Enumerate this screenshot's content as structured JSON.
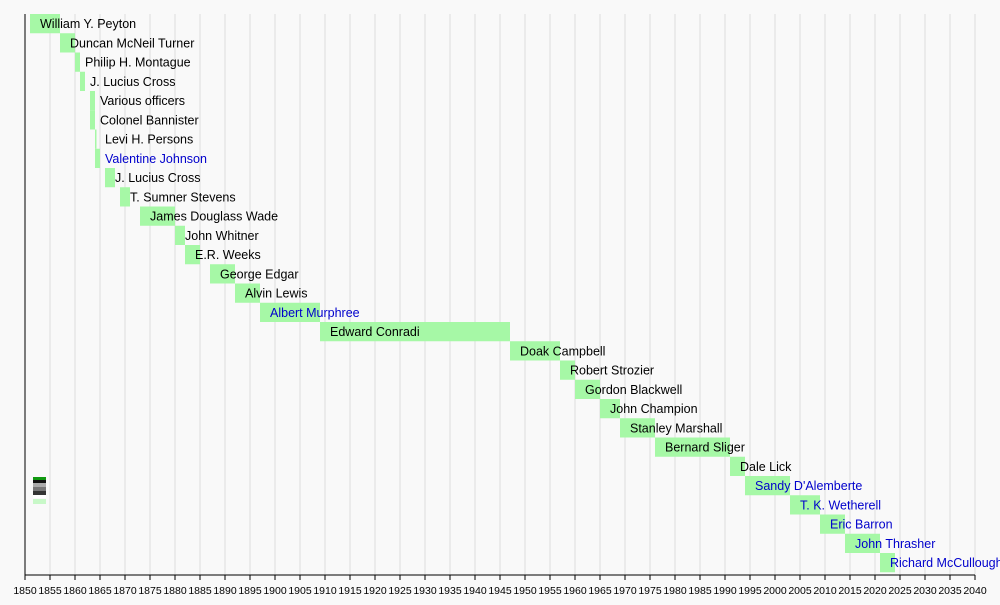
{
  "chart_data": {
    "type": "bar",
    "orientation": "horizontal-timeline",
    "title": "",
    "xlabel": "",
    "ylabel": "",
    "xlim": [
      1850,
      2040
    ],
    "xticks": [
      1850,
      1855,
      1860,
      1865,
      1870,
      1875,
      1880,
      1885,
      1890,
      1895,
      1900,
      1905,
      1910,
      1915,
      1920,
      1925,
      1930,
      1935,
      1940,
      1945,
      1950,
      1955,
      1960,
      1965,
      1970,
      1975,
      1980,
      1985,
      1990,
      1995,
      2000,
      2005,
      2010,
      2015,
      2020,
      2025,
      2030,
      2035,
      2040
    ],
    "grid": true,
    "colors": {
      "bar": "#a6f8a6",
      "link_text": "#0000cc",
      "text": "#000000",
      "grid": "#dddddd",
      "axis": "#000000"
    },
    "legend": "bottom-left",
    "entries": [
      {
        "name": "William Y. Peyton",
        "start": 1851,
        "end": 1857,
        "link": false
      },
      {
        "name": "Duncan McNeil Turner",
        "start": 1857,
        "end": 1860,
        "link": false
      },
      {
        "name": "Philip H. Montague",
        "start": 1860,
        "end": 1861,
        "link": false
      },
      {
        "name": "J. Lucius Cross",
        "start": 1861,
        "end": 1862,
        "link": false
      },
      {
        "name": "Various officers",
        "start": 1863,
        "end": 1864,
        "link": false
      },
      {
        "name": "Colonel Bannister",
        "start": 1863,
        "end": 1864,
        "link": false
      },
      {
        "name": "Levi H. Persons",
        "start": 1864,
        "end": 1864.3,
        "link": false
      },
      {
        "name": "Valentine Johnson",
        "start": 1864,
        "end": 1865,
        "link": true
      },
      {
        "name": "J. Lucius Cross",
        "start": 1866,
        "end": 1868,
        "link": false
      },
      {
        "name": "T. Sumner Stevens",
        "start": 1869,
        "end": 1871,
        "link": false
      },
      {
        "name": "James Douglass Wade",
        "start": 1873,
        "end": 1880,
        "link": false
      },
      {
        "name": "John Whitner",
        "start": 1880,
        "end": 1882,
        "link": false
      },
      {
        "name": "E.R. Weeks",
        "start": 1882,
        "end": 1885,
        "link": false
      },
      {
        "name": "George Edgar",
        "start": 1887,
        "end": 1892,
        "link": false
      },
      {
        "name": "Alvin Lewis",
        "start": 1892,
        "end": 1897,
        "link": false
      },
      {
        "name": "Albert Murphree",
        "start": 1897,
        "end": 1909,
        "link": true
      },
      {
        "name": "Edward Conradi",
        "start": 1909,
        "end": 1947,
        "link": false
      },
      {
        "name": "Doak Campbell",
        "start": 1947,
        "end": 1957,
        "link": false
      },
      {
        "name": "Robert Strozier",
        "start": 1957,
        "end": 1960,
        "link": false
      },
      {
        "name": "Gordon Blackwell",
        "start": 1960,
        "end": 1965,
        "link": false
      },
      {
        "name": "John Champion",
        "start": 1965,
        "end": 1969,
        "link": false
      },
      {
        "name": "Stanley Marshall",
        "start": 1969,
        "end": 1976,
        "link": false
      },
      {
        "name": "Bernard Sliger",
        "start": 1976,
        "end": 1991,
        "link": false
      },
      {
        "name": "Dale Lick",
        "start": 1991,
        "end": 1994,
        "link": false
      },
      {
        "name": "Sandy D'Alemberte",
        "start": 1994,
        "end": 2003,
        "link": true
      },
      {
        "name": "T. K. Wetherell",
        "start": 2003,
        "end": 2009,
        "link": true
      },
      {
        "name": "Eric Barron",
        "start": 2009,
        "end": 2014,
        "link": true
      },
      {
        "name": "John Thrasher",
        "start": 2014,
        "end": 2021,
        "link": true
      },
      {
        "name": "Richard McCullough",
        "start": 2021,
        "end": 2024,
        "link": true
      }
    ]
  }
}
